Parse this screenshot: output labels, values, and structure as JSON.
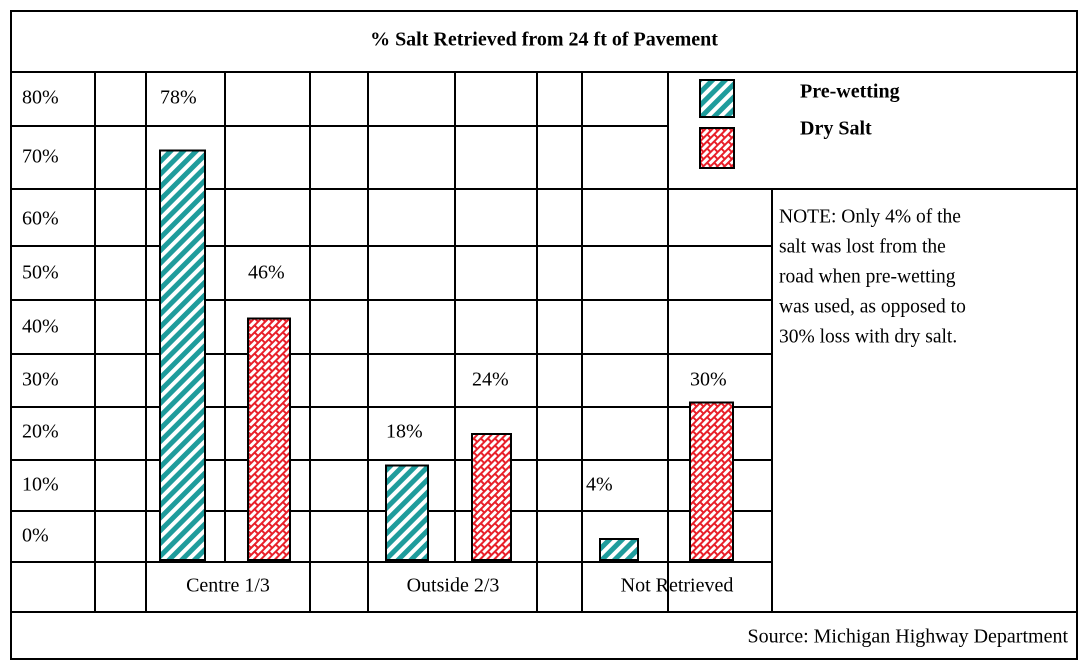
{
  "chart_data": {
    "type": "bar",
    "title": "% Salt Retrieved from 24 ft of Pavement",
    "row_labels": [
      "80%",
      "70%",
      "60%",
      "50%",
      "40%",
      "30%",
      "20%",
      "10%",
      "0%"
    ],
    "categories": [
      "Centre 1/3",
      "Outside 2/3",
      "Not Retrieved"
    ],
    "series": [
      {
        "name": "Pre-wetting",
        "color": "#1f9c9c",
        "values": [
          78,
          18,
          4
        ],
        "value_labels": [
          "78%",
          "18%",
          "4%"
        ]
      },
      {
        "name": "Dry Salt",
        "color": "#e8202a",
        "values": [
          46,
          24,
          30
        ],
        "value_labels": [
          "46%",
          "24%",
          "30%"
        ]
      }
    ],
    "note_lines": [
      "NOTE: Only 4% of the",
      "salt was lost from the",
      "road when pre-wetting",
      "was used, as opposed to",
      "30% loss with dry salt."
    ],
    "source": "Source: Michigan Highway Department"
  }
}
